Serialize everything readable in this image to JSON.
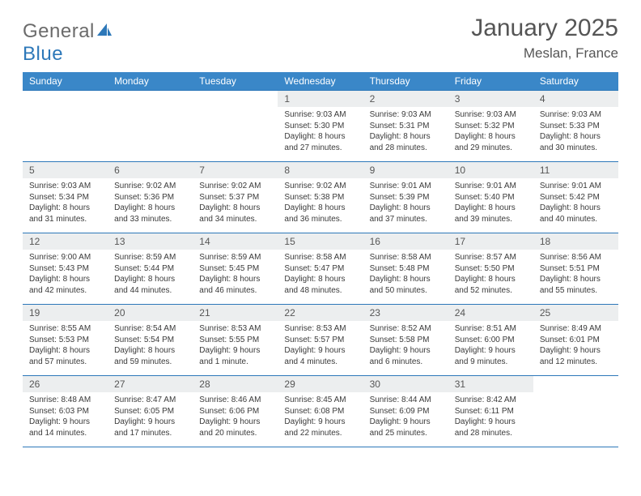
{
  "brand": {
    "part1": "General",
    "part2": "Blue"
  },
  "title": "January 2025",
  "location": "Meslan, France",
  "colors": {
    "header_bg": "#3a87c8",
    "border": "#2d78b9",
    "daynum_bg": "#eceeef",
    "text": "#333333"
  },
  "weekdays": [
    "Sunday",
    "Monday",
    "Tuesday",
    "Wednesday",
    "Thursday",
    "Friday",
    "Saturday"
  ],
  "weeks": [
    [
      {
        "n": "",
        "sr": "",
        "ss": "",
        "dl": ""
      },
      {
        "n": "",
        "sr": "",
        "ss": "",
        "dl": ""
      },
      {
        "n": "",
        "sr": "",
        "ss": "",
        "dl": ""
      },
      {
        "n": "1",
        "sr": "Sunrise: 9:03 AM",
        "ss": "Sunset: 5:30 PM",
        "dl": "Daylight: 8 hours and 27 minutes."
      },
      {
        "n": "2",
        "sr": "Sunrise: 9:03 AM",
        "ss": "Sunset: 5:31 PM",
        "dl": "Daylight: 8 hours and 28 minutes."
      },
      {
        "n": "3",
        "sr": "Sunrise: 9:03 AM",
        "ss": "Sunset: 5:32 PM",
        "dl": "Daylight: 8 hours and 29 minutes."
      },
      {
        "n": "4",
        "sr": "Sunrise: 9:03 AM",
        "ss": "Sunset: 5:33 PM",
        "dl": "Daylight: 8 hours and 30 minutes."
      }
    ],
    [
      {
        "n": "5",
        "sr": "Sunrise: 9:03 AM",
        "ss": "Sunset: 5:34 PM",
        "dl": "Daylight: 8 hours and 31 minutes."
      },
      {
        "n": "6",
        "sr": "Sunrise: 9:02 AM",
        "ss": "Sunset: 5:36 PM",
        "dl": "Daylight: 8 hours and 33 minutes."
      },
      {
        "n": "7",
        "sr": "Sunrise: 9:02 AM",
        "ss": "Sunset: 5:37 PM",
        "dl": "Daylight: 8 hours and 34 minutes."
      },
      {
        "n": "8",
        "sr": "Sunrise: 9:02 AM",
        "ss": "Sunset: 5:38 PM",
        "dl": "Daylight: 8 hours and 36 minutes."
      },
      {
        "n": "9",
        "sr": "Sunrise: 9:01 AM",
        "ss": "Sunset: 5:39 PM",
        "dl": "Daylight: 8 hours and 37 minutes."
      },
      {
        "n": "10",
        "sr": "Sunrise: 9:01 AM",
        "ss": "Sunset: 5:40 PM",
        "dl": "Daylight: 8 hours and 39 minutes."
      },
      {
        "n": "11",
        "sr": "Sunrise: 9:01 AM",
        "ss": "Sunset: 5:42 PM",
        "dl": "Daylight: 8 hours and 40 minutes."
      }
    ],
    [
      {
        "n": "12",
        "sr": "Sunrise: 9:00 AM",
        "ss": "Sunset: 5:43 PM",
        "dl": "Daylight: 8 hours and 42 minutes."
      },
      {
        "n": "13",
        "sr": "Sunrise: 8:59 AM",
        "ss": "Sunset: 5:44 PM",
        "dl": "Daylight: 8 hours and 44 minutes."
      },
      {
        "n": "14",
        "sr": "Sunrise: 8:59 AM",
        "ss": "Sunset: 5:45 PM",
        "dl": "Daylight: 8 hours and 46 minutes."
      },
      {
        "n": "15",
        "sr": "Sunrise: 8:58 AM",
        "ss": "Sunset: 5:47 PM",
        "dl": "Daylight: 8 hours and 48 minutes."
      },
      {
        "n": "16",
        "sr": "Sunrise: 8:58 AM",
        "ss": "Sunset: 5:48 PM",
        "dl": "Daylight: 8 hours and 50 minutes."
      },
      {
        "n": "17",
        "sr": "Sunrise: 8:57 AM",
        "ss": "Sunset: 5:50 PM",
        "dl": "Daylight: 8 hours and 52 minutes."
      },
      {
        "n": "18",
        "sr": "Sunrise: 8:56 AM",
        "ss": "Sunset: 5:51 PM",
        "dl": "Daylight: 8 hours and 55 minutes."
      }
    ],
    [
      {
        "n": "19",
        "sr": "Sunrise: 8:55 AM",
        "ss": "Sunset: 5:53 PM",
        "dl": "Daylight: 8 hours and 57 minutes."
      },
      {
        "n": "20",
        "sr": "Sunrise: 8:54 AM",
        "ss": "Sunset: 5:54 PM",
        "dl": "Daylight: 8 hours and 59 minutes."
      },
      {
        "n": "21",
        "sr": "Sunrise: 8:53 AM",
        "ss": "Sunset: 5:55 PM",
        "dl": "Daylight: 9 hours and 1 minute."
      },
      {
        "n": "22",
        "sr": "Sunrise: 8:53 AM",
        "ss": "Sunset: 5:57 PM",
        "dl": "Daylight: 9 hours and 4 minutes."
      },
      {
        "n": "23",
        "sr": "Sunrise: 8:52 AM",
        "ss": "Sunset: 5:58 PM",
        "dl": "Daylight: 9 hours and 6 minutes."
      },
      {
        "n": "24",
        "sr": "Sunrise: 8:51 AM",
        "ss": "Sunset: 6:00 PM",
        "dl": "Daylight: 9 hours and 9 minutes."
      },
      {
        "n": "25",
        "sr": "Sunrise: 8:49 AM",
        "ss": "Sunset: 6:01 PM",
        "dl": "Daylight: 9 hours and 12 minutes."
      }
    ],
    [
      {
        "n": "26",
        "sr": "Sunrise: 8:48 AM",
        "ss": "Sunset: 6:03 PM",
        "dl": "Daylight: 9 hours and 14 minutes."
      },
      {
        "n": "27",
        "sr": "Sunrise: 8:47 AM",
        "ss": "Sunset: 6:05 PM",
        "dl": "Daylight: 9 hours and 17 minutes."
      },
      {
        "n": "28",
        "sr": "Sunrise: 8:46 AM",
        "ss": "Sunset: 6:06 PM",
        "dl": "Daylight: 9 hours and 20 minutes."
      },
      {
        "n": "29",
        "sr": "Sunrise: 8:45 AM",
        "ss": "Sunset: 6:08 PM",
        "dl": "Daylight: 9 hours and 22 minutes."
      },
      {
        "n": "30",
        "sr": "Sunrise: 8:44 AM",
        "ss": "Sunset: 6:09 PM",
        "dl": "Daylight: 9 hours and 25 minutes."
      },
      {
        "n": "31",
        "sr": "Sunrise: 8:42 AM",
        "ss": "Sunset: 6:11 PM",
        "dl": "Daylight: 9 hours and 28 minutes."
      },
      {
        "n": "",
        "sr": "",
        "ss": "",
        "dl": ""
      }
    ]
  ]
}
